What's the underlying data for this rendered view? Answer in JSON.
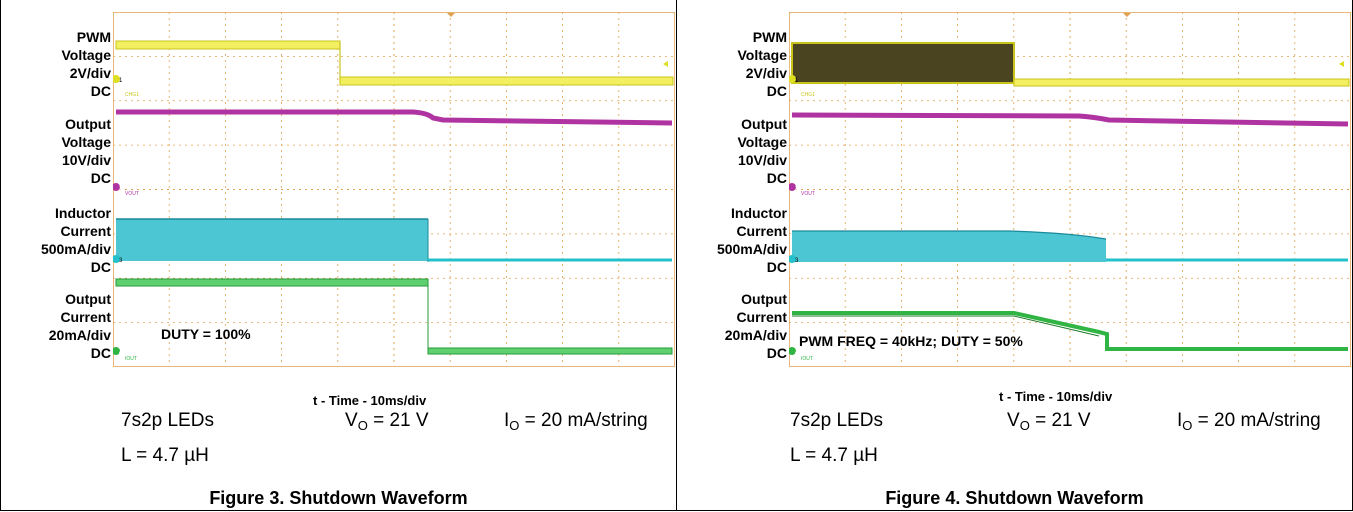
{
  "colors": {
    "ch1": "#dede22",
    "ch2": "#b033a2",
    "ch3": "#24c0cc",
    "ch4": "#30b444",
    "grid": "#e0a050",
    "burst": "#4a4520"
  },
  "chart_data": [
    {
      "type": "line",
      "title": "Figure 3. Shutdown Waveform",
      "xlabel": "t - Time - 10ms/div",
      "annotation": "DUTY = 100%",
      "conditions": {
        "leds": "7s2p LEDs",
        "inductance": "L = 4.7 µH",
        "vo_prefix": "V",
        "vo_sub": "O",
        "vo_value": " = 21 V",
        "io_prefix": "I",
        "io_sub": "O",
        "io_value": " = 20 mA/string"
      },
      "channels": [
        {
          "lines": [
            "PWM",
            "Voltage",
            "2V/div",
            "DC"
          ],
          "tag": "CHG1",
          "marker": "1",
          "color_key": "ch1"
        },
        {
          "lines": [
            "Output",
            "Voltage",
            "10V/div",
            "DC"
          ],
          "tag": "VOUT",
          "marker": "2",
          "color_key": "ch2"
        },
        {
          "lines": [
            "Inductor",
            "Current",
            "500mA/div",
            "DC"
          ],
          "tag": "",
          "marker": "3",
          "color_key": "ch3"
        },
        {
          "lines": [
            "Output",
            "Current",
            "20mA/div",
            "DC"
          ],
          "tag": "IOUT",
          "marker": "4",
          "color_key": "ch4"
        }
      ]
    },
    {
      "type": "line",
      "title": "Figure 4. Shutdown Waveform",
      "xlabel": "t - Time - 10ms/div",
      "annotation": "PWM FREQ = 40kHz; DUTY = 50%",
      "conditions": {
        "leds": "7s2p LEDs",
        "inductance": "L = 4.7 µH",
        "vo_prefix": "V",
        "vo_sub": "O",
        "vo_value": " = 21 V",
        "io_prefix": "I",
        "io_sub": "O",
        "io_value": " = 20 mA/string"
      },
      "channels": [
        {
          "lines": [
            "PWM",
            "Voltage",
            "2V/div",
            "DC"
          ],
          "tag": "CHG1",
          "marker": "1",
          "color_key": "ch1"
        },
        {
          "lines": [
            "Output",
            "Voltage",
            "10V/div",
            "DC"
          ],
          "tag": "VOUT",
          "marker": "2",
          "color_key": "ch2"
        },
        {
          "lines": [
            "Inductor",
            "Current",
            "500mA/div",
            "DC"
          ],
          "tag": "",
          "marker": "3",
          "color_key": "ch3"
        },
        {
          "lines": [
            "Output",
            "Current",
            "20mA/div",
            "DC"
          ],
          "tag": "IOUT",
          "marker": "4",
          "color_key": "ch4"
        }
      ]
    }
  ]
}
